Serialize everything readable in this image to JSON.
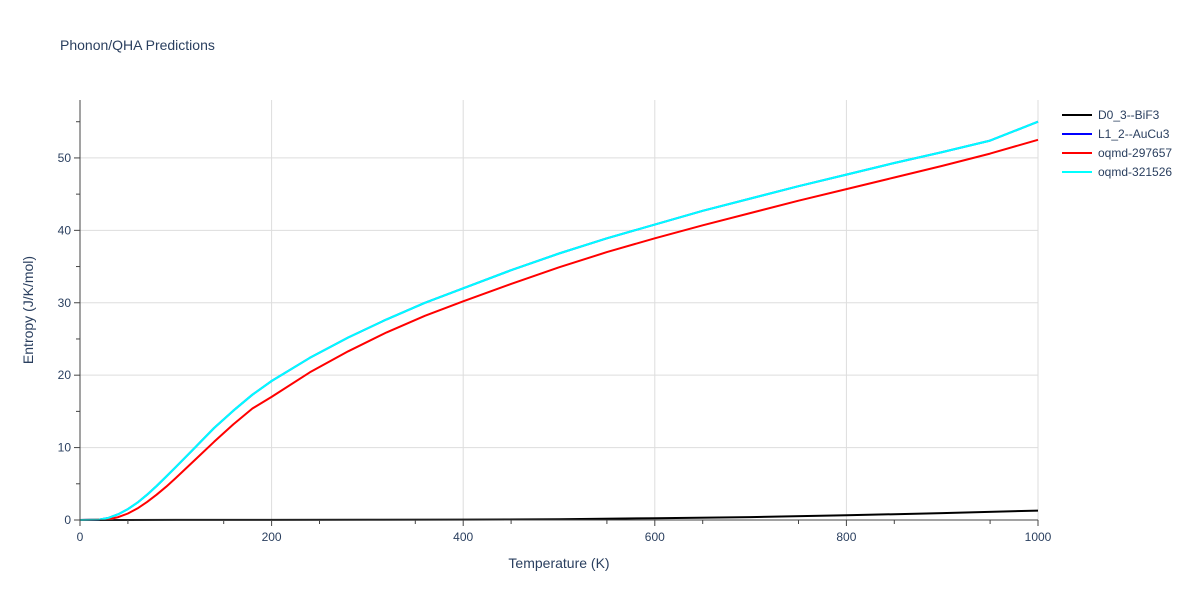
{
  "chart_data": {
    "type": "line",
    "title": "Phonon/QHA Predictions",
    "xlabel": "Temperature (K)",
    "ylabel": "Entropy (J/K/mol)",
    "xlim": [
      0,
      1000
    ],
    "ylim": [
      0,
      58
    ],
    "xticks": [
      0,
      200,
      400,
      600,
      800,
      1000
    ],
    "yticks": [
      0,
      10,
      20,
      30,
      40,
      50
    ],
    "grid": true,
    "legend_position": "top-right",
    "series": [
      {
        "name": "D0_3--BiF3",
        "color": "#000000",
        "x": [
          0,
          100,
          200,
          300,
          400,
          500,
          600,
          700,
          800,
          900,
          1000
        ],
        "y": [
          0,
          0.01,
          0.02,
          0.03,
          0.05,
          0.1,
          0.25,
          0.4,
          0.65,
          0.95,
          1.3
        ]
      },
      {
        "name": "L1_2--AuCu3",
        "color": "#0000ff",
        "x": [
          0,
          20,
          30,
          40,
          50,
          60,
          70,
          80,
          90,
          100,
          120,
          140,
          160,
          180,
          200,
          240,
          280,
          320,
          360,
          400,
          450,
          500,
          550,
          600,
          650,
          700,
          750,
          800,
          850,
          900,
          950,
          1000
        ],
        "y": [
          0,
          0.05,
          0.3,
          0.8,
          1.5,
          2.4,
          3.5,
          4.7,
          6.0,
          7.3,
          10.0,
          12.7,
          15.1,
          17.3,
          19.2,
          22.4,
          25.2,
          27.7,
          30.0,
          32.0,
          34.5,
          36.8,
          38.9,
          40.8,
          42.7,
          44.4,
          46.1,
          47.7,
          49.3,
          50.8,
          52.4,
          55.0
        ]
      },
      {
        "name": "oqmd-297657",
        "color": "#ff0000",
        "x": [
          0,
          30,
          40,
          50,
          60,
          70,
          80,
          90,
          100,
          120,
          140,
          160,
          180,
          200,
          240,
          280,
          320,
          360,
          400,
          450,
          500,
          550,
          600,
          650,
          700,
          750,
          800,
          850,
          900,
          950,
          1000
        ],
        "y": [
          0,
          0.1,
          0.4,
          0.9,
          1.6,
          2.5,
          3.5,
          4.6,
          5.8,
          8.3,
          10.8,
          13.2,
          15.4,
          17.0,
          20.4,
          23.3,
          25.9,
          28.2,
          30.2,
          32.6,
          34.9,
          37.0,
          38.9,
          40.7,
          42.4,
          44.1,
          45.7,
          47.3,
          48.9,
          50.6,
          52.5
        ]
      },
      {
        "name": "oqmd-321526",
        "color": "#00ffff",
        "x": [
          0,
          20,
          30,
          40,
          50,
          60,
          70,
          80,
          90,
          100,
          120,
          140,
          160,
          180,
          200,
          240,
          280,
          320,
          360,
          400,
          450,
          500,
          550,
          600,
          650,
          700,
          750,
          800,
          850,
          900,
          950,
          1000
        ],
        "y": [
          0,
          0.05,
          0.3,
          0.8,
          1.5,
          2.4,
          3.5,
          4.7,
          6.0,
          7.3,
          10.0,
          12.7,
          15.1,
          17.3,
          19.2,
          22.4,
          25.2,
          27.7,
          30.0,
          32.0,
          34.5,
          36.8,
          38.9,
          40.8,
          42.7,
          44.4,
          46.1,
          47.7,
          49.3,
          50.8,
          52.4,
          55.0
        ]
      }
    ]
  }
}
